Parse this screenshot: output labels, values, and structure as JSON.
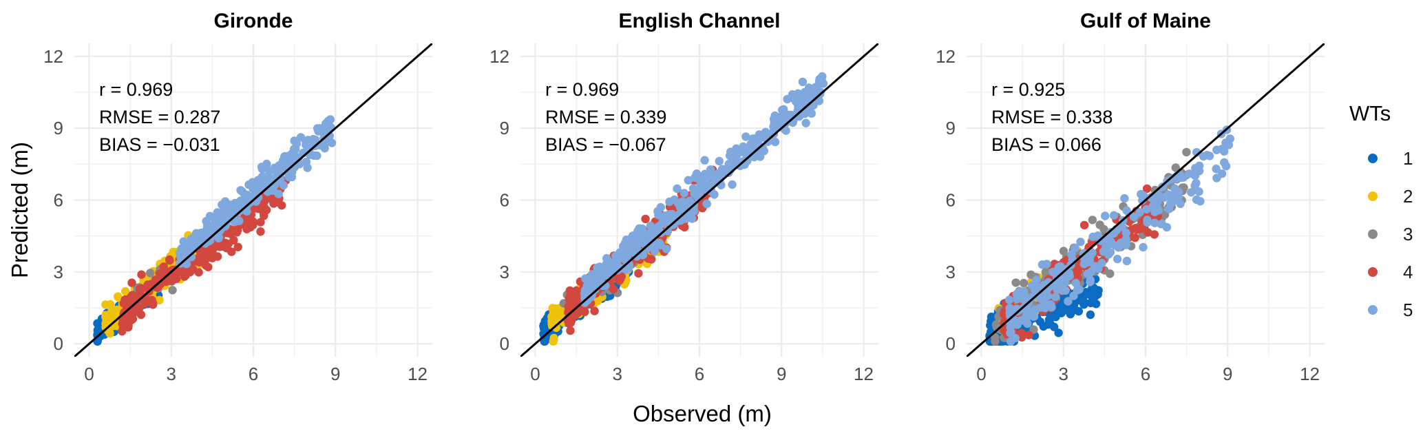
{
  "figure": {
    "xlabel": "Observed (m)",
    "ylabel": "Predicted (m)"
  },
  "legend": {
    "title": "WTs",
    "entries": [
      {
        "label": "1",
        "color": "#0A6BC2"
      },
      {
        "label": "2",
        "color": "#F0C20B"
      },
      {
        "label": "3",
        "color": "#8A8A8A"
      },
      {
        "label": "4",
        "color": "#D2473F"
      },
      {
        "label": "5",
        "color": "#7EA8DE"
      }
    ]
  },
  "chart_data": [
    {
      "type": "scatter",
      "title": "Gironde",
      "xlim": [
        0,
        12
      ],
      "ylim": [
        0,
        12
      ],
      "xticks": [
        0,
        3,
        6,
        9,
        12
      ],
      "yticks": [
        0,
        3,
        6,
        9,
        12
      ],
      "grid": true,
      "reference_line": "1:1",
      "stats": [
        "r = 0.969",
        "RMSE = 0.287",
        "BIAS = −0.031"
      ],
      "series": [
        {
          "name": "1",
          "color": "#0A6BC2",
          "x_range": [
            0.3,
            2.6
          ],
          "slope": 0.92,
          "intercept": 0.15,
          "spread": 0.2,
          "n": 260
        },
        {
          "name": "2",
          "color": "#F0C20B",
          "x_range": [
            0.6,
            4.3
          ],
          "slope": 0.95,
          "intercept": 0.25,
          "spread": 0.3,
          "n": 240
        },
        {
          "name": "3",
          "color": "#8A8A8A",
          "x_range": [
            1.5,
            4.5
          ],
          "slope": 0.95,
          "intercept": 0.2,
          "spread": 0.3,
          "n": 40
        },
        {
          "name": "4",
          "color": "#D2473F",
          "x_range": [
            1.2,
            7.2
          ],
          "slope": 0.88,
          "intercept": 0.1,
          "spread": 0.35,
          "n": 200
        },
        {
          "name": "5",
          "color": "#7EA8DE",
          "x_range": [
            3.3,
            8.9
          ],
          "slope": 0.97,
          "intercept": 0.45,
          "spread": 0.32,
          "n": 260
        }
      ]
    },
    {
      "type": "scatter",
      "title": "English Channel",
      "xlim": [
        0,
        12
      ],
      "ylim": [
        0,
        12
      ],
      "xticks": [
        0,
        3,
        6,
        9,
        12
      ],
      "yticks": [
        0,
        3,
        6,
        9,
        12
      ],
      "grid": true,
      "reference_line": "1:1",
      "stats": [
        "r = 0.969",
        "RMSE = 0.339",
        "BIAS = −0.067"
      ],
      "series": [
        {
          "name": "1",
          "color": "#0A6BC2",
          "x_range": [
            0.3,
            3.5
          ],
          "slope": 0.88,
          "intercept": 0.25,
          "spread": 0.25,
          "n": 320
        },
        {
          "name": "2",
          "color": "#F0C20B",
          "x_range": [
            0.6,
            4.8
          ],
          "slope": 0.85,
          "intercept": 0.45,
          "spread": 0.28,
          "n": 180
        },
        {
          "name": "3",
          "color": "#8A8A8A",
          "x_range": [
            1.0,
            4.5
          ],
          "slope": 0.9,
          "intercept": 0.3,
          "spread": 0.3,
          "n": 30
        },
        {
          "name": "4",
          "color": "#D2473F",
          "x_range": [
            1.2,
            6.5
          ],
          "slope": 0.95,
          "intercept": 0.3,
          "spread": 0.4,
          "n": 260
        },
        {
          "name": "5",
          "color": "#7EA8DE",
          "x_range": [
            1.8,
            10.6
          ],
          "slope": 0.98,
          "intercept": 0.4,
          "spread": 0.38,
          "n": 380
        }
      ]
    },
    {
      "type": "scatter",
      "title": "Gulf of Maine",
      "xlim": [
        0,
        12
      ],
      "ylim": [
        0,
        12
      ],
      "xticks": [
        0,
        3,
        6,
        9,
        12
      ],
      "yticks": [
        0,
        3,
        6,
        9,
        12
      ],
      "grid": true,
      "reference_line": "1:1",
      "stats": [
        "r = 0.925",
        "RMSE = 0.338",
        "BIAS = 0.066"
      ],
      "series": [
        {
          "name": "1",
          "color": "#0A6BC2",
          "x_range": [
            0.3,
            4.3
          ],
          "slope": 0.45,
          "intercept": 0.35,
          "spread": 0.35,
          "n": 320
        },
        {
          "name": "2",
          "color": "#F0C20B",
          "x_range": [
            0.6,
            3.6
          ],
          "slope": 0.9,
          "intercept": 0.3,
          "spread": 0.35,
          "n": 60
        },
        {
          "name": "3",
          "color": "#8A8A8A",
          "x_range": [
            0.5,
            7.5
          ],
          "slope": 0.9,
          "intercept": 0.2,
          "spread": 0.5,
          "n": 160
        },
        {
          "name": "4",
          "color": "#D2473F",
          "x_range": [
            0.8,
            6.5
          ],
          "slope": 0.85,
          "intercept": 0.15,
          "spread": 0.45,
          "n": 160
        },
        {
          "name": "5",
          "color": "#7EA8DE",
          "x_range": [
            1.0,
            9.1
          ],
          "slope": 0.88,
          "intercept": 0.1,
          "spread": 0.55,
          "n": 220
        }
      ]
    }
  ]
}
